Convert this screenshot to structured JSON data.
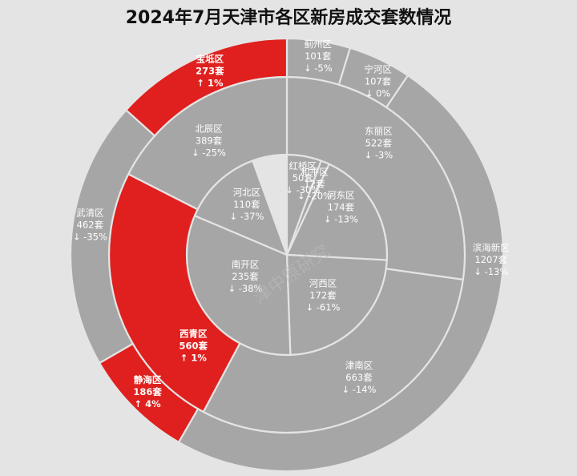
{
  "chart_data": {
    "type": "pie",
    "subtype": "multi-ring sunburst",
    "title": "2024年7月天津市各区新房成交套数情况",
    "watermark": "津中原研究",
    "unit": "套",
    "colors": {
      "up": "#e0201e",
      "down": "#a6a6a6",
      "edge": "#e4e4e4"
    },
    "rings": [
      {
        "name": "inner",
        "slices": [
          {
            "name": "红桥区",
            "value": "50套",
            "change": "↓ -30%",
            "trend": "down",
            "start": 0,
            "end": 20
          },
          {
            "name": "和平区",
            "value": "12套",
            "change": "↓ -20%",
            "trend": "down",
            "start": 20,
            "end": 25
          },
          {
            "name": "河东区",
            "value": "174套",
            "change": "↓ -13%",
            "trend": "down",
            "start": 25,
            "end": 93
          },
          {
            "name": "河西区",
            "value": "172套",
            "change": "↓ -61%",
            "trend": "down",
            "start": 93,
            "end": 178
          },
          {
            "name": "南开区",
            "value": "235套",
            "change": "↓ -38%",
            "trend": "down",
            "start": 178,
            "end": 293
          },
          {
            "name": "河北区",
            "value": "110套",
            "change": "↓ -37%",
            "trend": "down",
            "start": 293,
            "end": 340
          }
        ]
      },
      {
        "name": "middle",
        "slices": [
          {
            "name": "东丽区",
            "value": "522套",
            "change": "↓ -3%",
            "trend": "down",
            "start": 0,
            "end": 98
          },
          {
            "name": "津南区",
            "value": "663套",
            "change": "↓ -14%",
            "trend": "down",
            "start": 98,
            "end": 208
          },
          {
            "name": "西青区",
            "value": "560套",
            "change": "↑ 1%",
            "trend": "up",
            "start": 208,
            "end": 297
          },
          {
            "name": "北辰区",
            "value": "389套",
            "change": "↓ -25%",
            "trend": "down",
            "start": 297,
            "end": 360
          }
        ]
      },
      {
        "name": "outer",
        "slices": [
          {
            "name": "蓟州区",
            "value": "101套",
            "change": "↓ -5%",
            "trend": "down",
            "start": 0,
            "end": 17
          },
          {
            "name": "宁河区",
            "value": "107套",
            "change": "↓ 0%",
            "trend": "down",
            "start": 17,
            "end": 34
          },
          {
            "name": "滨海新区",
            "value": "1207套",
            "change": "↓ -13%",
            "trend": "down",
            "start": 34,
            "end": 210
          },
          {
            "name": "静海区",
            "value": "186套",
            "change": "↑ 4%",
            "trend": "up",
            "start": 210,
            "end": 240
          },
          {
            "name": "武清区",
            "value": "462套",
            "change": "↓ -35%",
            "trend": "down",
            "start": 240,
            "end": 312
          },
          {
            "name": "宝坻区",
            "value": "273套",
            "change": "↑ 1%",
            "trend": "up",
            "start": 312,
            "end": 360
          }
        ]
      }
    ]
  }
}
